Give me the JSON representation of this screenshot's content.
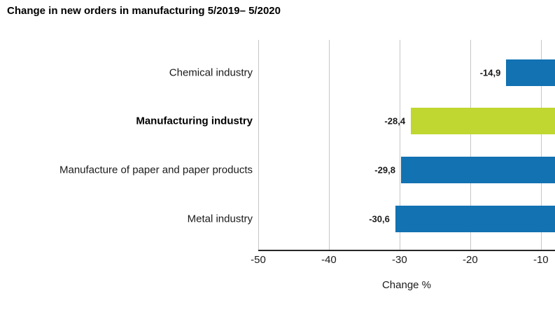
{
  "title": "Change in new orders in manufacturing 5/2019– 5/2020",
  "chart_data": {
    "type": "bar",
    "orientation": "horizontal",
    "title": "Change in new orders in manufacturing 5/2019– 5/2020",
    "categories": [
      "Chemical industry",
      "Manufacturing industry",
      "Manufacture of paper and paper products",
      "Metal industry"
    ],
    "values": [
      -14.9,
      -28.4,
      -29.8,
      -30.6
    ],
    "value_labels": [
      "-14,9",
      "-28,4",
      "-29,8",
      "-30,6"
    ],
    "emphasized_category": "Manufacturing industry",
    "xlabel": "Change %",
    "ylabel": "",
    "x_ticks": [
      -50,
      -40,
      -30,
      -20,
      -10
    ],
    "x_tick_labels": [
      "-50",
      "-40",
      "-30",
      "-20",
      "-10"
    ],
    "xlim": [
      -50,
      -8
    ],
    "bars_anchored_at": "right-edge",
    "grid": true,
    "legend": "none",
    "colors": {
      "bar": "#1272b2",
      "bar_highlight": "#bfd730",
      "gridline": "#c6c6c6",
      "axis": "#262626",
      "text": "#1a1a1a"
    }
  }
}
